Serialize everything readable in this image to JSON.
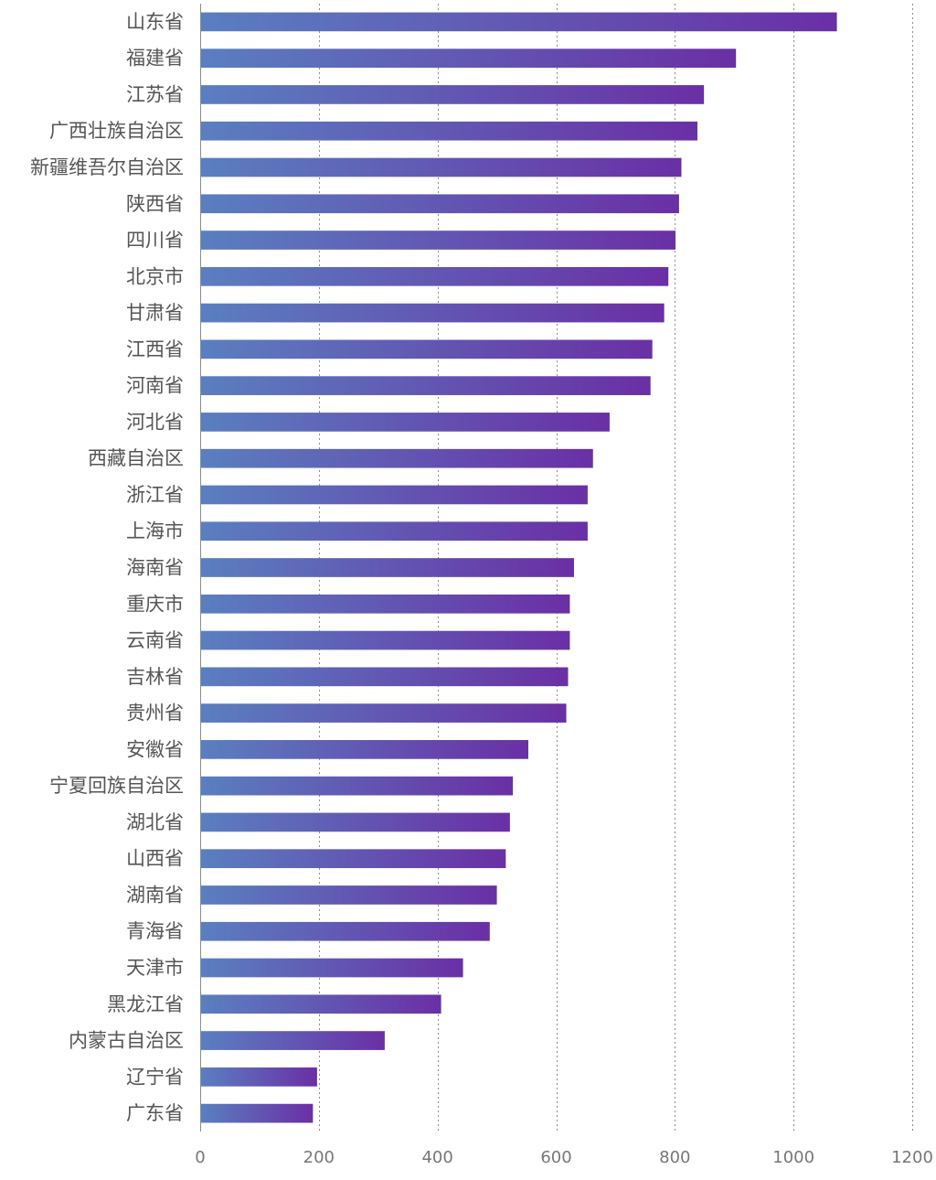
{
  "chart_data": {
    "type": "bar",
    "orientation": "horizontal",
    "title": "",
    "xlabel": "",
    "ylabel": "",
    "xlim": [
      0,
      1200
    ],
    "x_ticks": [
      0,
      200,
      400,
      600,
      800,
      1000,
      1200
    ],
    "grid": "vertical-dotted",
    "legend": "none",
    "colors": {
      "bar_start": "#5a7fc0",
      "bar_end": "#6a2fa5",
      "grid": "#8c8c8c",
      "label": "#555555"
    },
    "categories": [
      "山东省",
      "福建省",
      "江苏省",
      "广西壮族自治区",
      "新疆维吾尔自治区",
      "陕西省",
      "四川省",
      "北京市",
      "甘肃省",
      "江西省",
      "河南省",
      "河北省",
      "西藏自治区",
      "浙江省",
      "上海市",
      "海南省",
      "重庆市",
      "云南省",
      "吉林省",
      "贵州省",
      "安徽省",
      "宁夏回族自治区",
      "湖北省",
      "山西省",
      "湖南省",
      "青海省",
      "天津市",
      "黑龙江省",
      "内蒙古自治区",
      "辽宁省",
      "广东省"
    ],
    "values": [
      1073,
      903,
      849,
      838,
      811,
      807,
      801,
      789,
      782,
      762,
      759,
      690,
      662,
      653,
      653,
      630,
      623,
      623,
      620,
      617,
      553,
      527,
      522,
      515,
      500,
      488,
      443,
      406,
      311,
      197,
      190
    ]
  }
}
